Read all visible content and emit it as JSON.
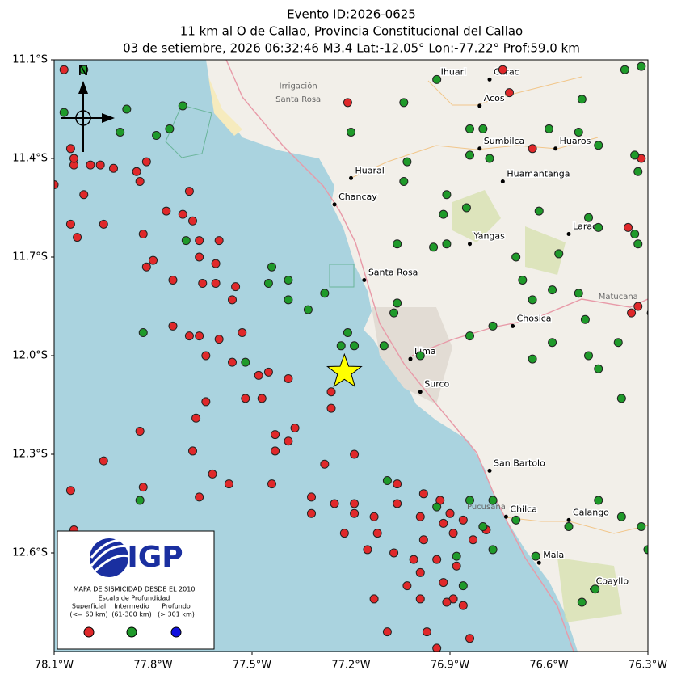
{
  "chart_data": {
    "type": "scatter",
    "title": [
      "Evento ID:2026-0625",
      "11 km al O de Callao, Provincia Constitucional del Callao",
      "03 de setiembre, 2026 06:32:46 M3.4 Lat:-12.05° Lon:-77.22° Prof:59.0 km"
    ],
    "xlim": [
      -78.1,
      -76.3
    ],
    "ylim": [
      -12.9,
      -11.1
    ],
    "xticks": [
      {
        "value": -78.1,
        "label": "78.1°W"
      },
      {
        "value": -77.8,
        "label": "77.8°W"
      },
      {
        "value": -77.5,
        "label": "77.5°W"
      },
      {
        "value": -77.2,
        "label": "77.2°W"
      },
      {
        "value": -76.9,
        "label": "76.9°W"
      },
      {
        "value": -76.6,
        "label": "76.6°W"
      },
      {
        "value": -76.3,
        "label": "76.3°W"
      }
    ],
    "yticks": [
      {
        "value": -11.1,
        "label": "11.1°S"
      },
      {
        "value": -11.4,
        "label": "11.4°S"
      },
      {
        "value": -11.7,
        "label": "11.7°S"
      },
      {
        "value": -12.0,
        "label": "12.0°S"
      },
      {
        "value": -12.3,
        "label": "12.3°S"
      },
      {
        "value": -12.6,
        "label": "12.6°S"
      }
    ],
    "epicenter": {
      "lon": -77.22,
      "lat": -12.05,
      "color": "#ffff00"
    },
    "compass": "N",
    "legend": {
      "logo": "IGP",
      "title": "MAPA DE SISMICIDAD DESDE EL 2010",
      "subtitle": "Escala de Profundidad"
    },
    "series": [
      {
        "name": "Superficial",
        "range": "(<= 60 km)",
        "color": "#e0282a",
        "x": [
          -78.07,
          -78.05,
          -78.04,
          -77.99,
          -78.01,
          -78.1,
          -77.96,
          -77.92,
          -77.85,
          -77.82,
          -77.84,
          -77.69,
          -77.76,
          -77.71,
          -77.68,
          -77.95,
          -78.05,
          -78.03,
          -77.83,
          -77.66,
          -77.6,
          -77.8,
          -77.82,
          -77.66,
          -77.61,
          -77.74,
          -77.65,
          -77.61,
          -77.55,
          -77.56,
          -77.74,
          -77.53,
          -77.69,
          -77.66,
          -77.64,
          -77.6,
          -77.56,
          -77.45,
          -77.39,
          -77.48,
          -77.52,
          -77.47,
          -77.64,
          -77.67,
          -77.26,
          -77.26,
          -77.37,
          -77.39,
          -77.43,
          -77.43,
          -77.68,
          -77.84,
          -77.62,
          -77.57,
          -77.44,
          -77.28,
          -77.19,
          -77.32,
          -77.25,
          -77.32,
          -77.19,
          -77.19,
          -77.13,
          -77.06,
          -77.06,
          -76.98,
          -76.93,
          -76.99,
          -76.9,
          -76.92,
          -76.89,
          -76.86,
          -76.83,
          -76.79,
          -77.12,
          -77.22,
          -77.15,
          -77.07,
          -76.98,
          -77.01,
          -76.99,
          -76.94,
          -77.03,
          -76.99,
          -76.92,
          -76.89,
          -76.86,
          -77.13,
          -77.09,
          -76.97,
          -76.94,
          -76.84,
          -76.91,
          -77.66,
          -77.83,
          -78.05,
          -77.95,
          -78.04,
          -76.29,
          -76.33,
          -76.35,
          -76.36,
          -76.32,
          -77.21,
          -76.65,
          -76.72,
          -76.74,
          -76.88,
          -78.04
        ],
        "y": [
          -11.13,
          -11.37,
          -11.42,
          -11.42,
          -11.51,
          -11.48,
          -11.42,
          -11.43,
          -11.44,
          -11.41,
          -11.47,
          -11.5,
          -11.56,
          -11.57,
          -11.59,
          -11.6,
          -11.6,
          -11.64,
          -11.63,
          -11.65,
          -11.65,
          -11.71,
          -11.73,
          -11.7,
          -11.72,
          -11.77,
          -11.78,
          -11.78,
          -11.79,
          -11.83,
          -11.91,
          -11.93,
          -11.94,
          -11.94,
          -12.0,
          -11.95,
          -12.02,
          -12.05,
          -12.07,
          -12.06,
          -12.13,
          -12.13,
          -12.14,
          -12.19,
          -12.11,
          -12.16,
          -12.22,
          -12.26,
          -12.24,
          -12.29,
          -12.29,
          -12.23,
          -12.36,
          -12.39,
          -12.39,
          -12.33,
          -12.3,
          -12.43,
          -12.45,
          -12.48,
          -12.45,
          -12.48,
          -12.49,
          -12.45,
          -12.39,
          -12.42,
          -12.44,
          -12.49,
          -12.48,
          -12.51,
          -12.54,
          -12.5,
          -12.56,
          -12.53,
          -12.54,
          -12.54,
          -12.59,
          -12.6,
          -12.56,
          -12.62,
          -12.66,
          -12.62,
          -12.7,
          -12.74,
          -12.69,
          -12.74,
          -12.76,
          -12.74,
          -12.84,
          -12.84,
          -12.89,
          -12.86,
          -12.75,
          -12.43,
          -12.4,
          -12.41,
          -12.32,
          -12.53,
          -11.87,
          -11.85,
          -11.87,
          -11.61,
          -11.4,
          -11.23,
          -11.37,
          -11.2,
          -11.13,
          -12.64,
          -11.4
        ]
      },
      {
        "name": "Intermedio",
        "range": "(61-300 km)",
        "color": "#1f9a2a",
        "x": [
          -78.07,
          -78.01,
          -77.88,
          -77.79,
          -77.75,
          -77.71,
          -77.9,
          -77.83,
          -77.7,
          -77.52,
          -77.45,
          -77.44,
          -77.39,
          -77.39,
          -77.33,
          -77.28,
          -77.2,
          -77.04,
          -76.94,
          -76.84,
          -76.8,
          -76.84,
          -76.91,
          -76.92,
          -76.85,
          -77.03,
          -77.04,
          -77.06,
          -76.95,
          -76.91,
          -77.06,
          -77.07,
          -76.99,
          -76.84,
          -76.77,
          -76.65,
          -76.59,
          -76.49,
          -76.39,
          -76.48,
          -76.45,
          -76.38,
          -76.51,
          -76.34,
          -76.33,
          -76.45,
          -76.57,
          -76.32,
          -76.37,
          -76.5,
          -76.6,
          -76.51,
          -76.45,
          -76.34,
          -76.33,
          -76.48,
          -76.63,
          -76.78,
          -76.7,
          -76.68,
          -76.59,
          -76.65,
          -76.77,
          -76.7,
          -76.8,
          -76.88,
          -76.86,
          -76.77,
          -76.64,
          -76.54,
          -76.45,
          -76.38,
          -76.32,
          -76.3,
          -76.5,
          -76.46,
          -77.21,
          -77.23,
          -77.19,
          -77.1,
          -77.84,
          -77.09,
          -76.94,
          -76.84
        ],
        "y": [
          -11.26,
          -11.13,
          -11.25,
          -11.33,
          -11.31,
          -11.24,
          -11.32,
          -11.93,
          -11.65,
          -12.02,
          -11.78,
          -11.73,
          -11.77,
          -11.83,
          -11.86,
          -11.81,
          -11.32,
          -11.23,
          -11.16,
          -11.31,
          -11.31,
          -11.39,
          -11.51,
          -11.57,
          -11.55,
          -11.41,
          -11.47,
          -11.66,
          -11.67,
          -11.66,
          -11.84,
          -11.87,
          -12.0,
          -11.94,
          -11.91,
          -12.01,
          -11.96,
          -11.89,
          -11.96,
          -12.0,
          -12.04,
          -12.13,
          -11.81,
          -11.63,
          -11.66,
          -11.61,
          -11.69,
          -11.12,
          -11.13,
          -11.22,
          -11.31,
          -11.32,
          -11.36,
          -11.39,
          -11.44,
          -11.58,
          -11.56,
          -11.4,
          -11.7,
          -11.77,
          -11.8,
          -11.83,
          -12.44,
          -12.5,
          -12.52,
          -12.61,
          -12.7,
          -12.59,
          -12.61,
          -12.52,
          -12.44,
          -12.49,
          -12.52,
          -12.59,
          -12.75,
          -12.71,
          -11.93,
          -11.97,
          -11.97,
          -11.97,
          -12.44,
          -12.38,
          -12.46,
          -12.44
        ]
      },
      {
        "name": "Profundo",
        "range": "(> 301 km)",
        "color": "#1010e0",
        "x": [],
        "y": []
      }
    ],
    "places": [
      {
        "name": "Ihuari",
        "lon": -76.94,
        "lat": -11.16
      },
      {
        "name": "Carac",
        "lon": -76.78,
        "lat": -11.16
      },
      {
        "name": "Acos",
        "lon": -76.81,
        "lat": -11.24
      },
      {
        "name": "Sumbilca",
        "lon": -76.81,
        "lat": -11.37
      },
      {
        "name": "Huaros",
        "lon": -76.58,
        "lat": -11.37
      },
      {
        "name": "Huamantanga",
        "lon": -76.74,
        "lat": -11.47
      },
      {
        "name": "Laraos",
        "lon": -76.54,
        "lat": -11.63
      },
      {
        "name": "Yangas",
        "lon": -76.84,
        "lat": -11.66
      },
      {
        "name": "Huaral",
        "lon": -77.2,
        "lat": -11.46
      },
      {
        "name": "Chancay",
        "lon": -77.25,
        "lat": -11.54
      },
      {
        "name": "Santa Rosa",
        "lon": -77.16,
        "lat": -11.77
      },
      {
        "name": "Chosica",
        "lon": -76.71,
        "lat": -11.91
      },
      {
        "name": "Lima",
        "lon": -77.02,
        "lat": -12.01
      },
      {
        "name": "Surco",
        "lon": -76.99,
        "lat": -12.11
      },
      {
        "name": "San Bartolo",
        "lon": -76.78,
        "lat": -12.35
      },
      {
        "name": "Chilca",
        "lon": -76.73,
        "lat": -12.49
      },
      {
        "name": "Calango",
        "lon": -76.54,
        "lat": -12.5
      },
      {
        "name": "Mala",
        "lon": -76.63,
        "lat": -12.63
      },
      {
        "name": "Coayllo",
        "lon": -76.47,
        "lat": -12.71
      }
    ],
    "basemap_labels": [
      {
        "text": "Irrigación",
        "lon": -77.36,
        "lat": -11.18
      },
      {
        "text": "Santa Rosa",
        "lon": -77.36,
        "lat": -11.22
      },
      {
        "text": "Pucusana",
        "lon": -76.79,
        "lat": -12.46
      },
      {
        "text": "Matucana",
        "lon": -76.39,
        "lat": -11.82
      }
    ]
  }
}
